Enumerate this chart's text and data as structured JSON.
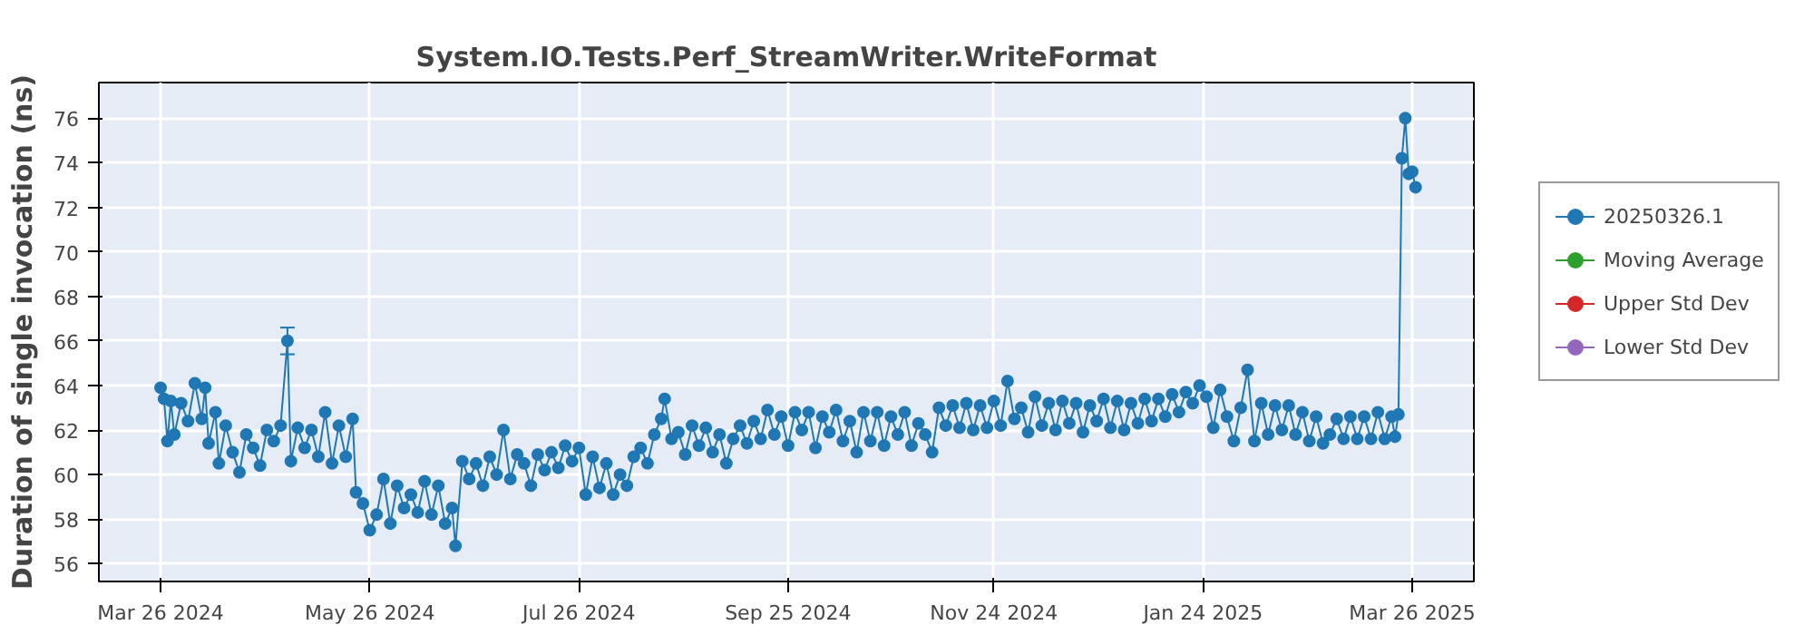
{
  "chart_data": {
    "type": "line",
    "title": "System.IO.Tests.Perf_StreamWriter.WriteFormat",
    "ylabel": "Duration of single invocation (ns)",
    "xlim": [
      "2024-03-08",
      "2025-04-13"
    ],
    "ylim": [
      55.2,
      77.6
    ],
    "xticks": [
      {
        "value": "2024-03-26",
        "label": "Mar 26 2024"
      },
      {
        "value": "2024-05-26",
        "label": "May 26 2024"
      },
      {
        "value": "2024-07-26",
        "label": "Jul 26 2024"
      },
      {
        "value": "2024-09-25",
        "label": "Sep 25 2024"
      },
      {
        "value": "2024-11-24",
        "label": "Nov 24 2024"
      },
      {
        "value": "2025-01-24",
        "label": "Jan 24 2025"
      },
      {
        "value": "2025-03-26",
        "label": "Mar 26 2025"
      }
    ],
    "yticks": [
      56,
      58,
      60,
      62,
      64,
      66,
      68,
      70,
      72,
      74,
      76
    ],
    "grid": true,
    "legend": "right",
    "marker": "circle",
    "line_style": "solid",
    "series": [
      {
        "name": "20250326.1",
        "color": "#1f77b4",
        "x": [
          "2024-03-26",
          "2024-03-27",
          "2024-03-28",
          "2024-03-29",
          "2024-03-30",
          "2024-04-01",
          "2024-04-03",
          "2024-04-05",
          "2024-04-07",
          "2024-04-08",
          "2024-04-09",
          "2024-04-11",
          "2024-04-12",
          "2024-04-14",
          "2024-04-16",
          "2024-04-18",
          "2024-04-20",
          "2024-04-22",
          "2024-04-24",
          "2024-04-26",
          "2024-04-28",
          "2024-04-30",
          "2024-05-02",
          "2024-05-03",
          "2024-05-05",
          "2024-05-07",
          "2024-05-09",
          "2024-05-11",
          "2024-05-13",
          "2024-05-15",
          "2024-05-17",
          "2024-05-19",
          "2024-05-21",
          "2024-05-22",
          "2024-05-24",
          "2024-05-26",
          "2024-05-28",
          "2024-05-30",
          "2024-06-01",
          "2024-06-03",
          "2024-06-05",
          "2024-06-07",
          "2024-06-09",
          "2024-06-11",
          "2024-06-13",
          "2024-06-15",
          "2024-06-17",
          "2024-06-19",
          "2024-06-20",
          "2024-06-22",
          "2024-06-24",
          "2024-06-26",
          "2024-06-28",
          "2024-06-30",
          "2024-07-02",
          "2024-07-04",
          "2024-07-06",
          "2024-07-08",
          "2024-07-10",
          "2024-07-12",
          "2024-07-14",
          "2024-07-16",
          "2024-07-18",
          "2024-07-20",
          "2024-07-22",
          "2024-07-24",
          "2024-07-26",
          "2024-07-28",
          "2024-07-30",
          "2024-08-01",
          "2024-08-03",
          "2024-08-05",
          "2024-08-07",
          "2024-08-09",
          "2024-08-11",
          "2024-08-13",
          "2024-08-15",
          "2024-08-17",
          "2024-08-19",
          "2024-08-20",
          "2024-08-22",
          "2024-08-24",
          "2024-08-26",
          "2024-08-28",
          "2024-08-30",
          "2024-09-01",
          "2024-09-03",
          "2024-09-05",
          "2024-09-07",
          "2024-09-09",
          "2024-09-11",
          "2024-09-13",
          "2024-09-15",
          "2024-09-17",
          "2024-09-19",
          "2024-09-21",
          "2024-09-23",
          "2024-09-25",
          "2024-09-27",
          "2024-09-29",
          "2024-10-01",
          "2024-10-03",
          "2024-10-05",
          "2024-10-07",
          "2024-10-09",
          "2024-10-11",
          "2024-10-13",
          "2024-10-15",
          "2024-10-17",
          "2024-10-19",
          "2024-10-21",
          "2024-10-23",
          "2024-10-25",
          "2024-10-27",
          "2024-10-29",
          "2024-10-31",
          "2024-11-02",
          "2024-11-04",
          "2024-11-06",
          "2024-11-08",
          "2024-11-10",
          "2024-11-12",
          "2024-11-14",
          "2024-11-16",
          "2024-11-18",
          "2024-11-20",
          "2024-11-22",
          "2024-11-24",
          "2024-11-26",
          "2024-11-28",
          "2024-11-30",
          "2024-12-02",
          "2024-12-04",
          "2024-12-06",
          "2024-12-08",
          "2024-12-10",
          "2024-12-12",
          "2024-12-14",
          "2024-12-16",
          "2024-12-18",
          "2024-12-20",
          "2024-12-22",
          "2024-12-24",
          "2024-12-26",
          "2024-12-28",
          "2024-12-30",
          "2025-01-01",
          "2025-01-03",
          "2025-01-05",
          "2025-01-07",
          "2025-01-09",
          "2025-01-11",
          "2025-01-13",
          "2025-01-15",
          "2025-01-17",
          "2025-01-19",
          "2025-01-21",
          "2025-01-23",
          "2025-01-25",
          "2025-01-27",
          "2025-01-29",
          "2025-01-31",
          "2025-02-02",
          "2025-02-04",
          "2025-02-06",
          "2025-02-08",
          "2025-02-10",
          "2025-02-12",
          "2025-02-14",
          "2025-02-16",
          "2025-02-18",
          "2025-02-20",
          "2025-02-22",
          "2025-02-24",
          "2025-02-26",
          "2025-02-28",
          "2025-03-02",
          "2025-03-04",
          "2025-03-06",
          "2025-03-08",
          "2025-03-10",
          "2025-03-12",
          "2025-03-14",
          "2025-03-16",
          "2025-03-18",
          "2025-03-20",
          "2025-03-21",
          "2025-03-22",
          "2025-03-23",
          "2025-03-24",
          "2025-03-25",
          "2025-03-26",
          "2025-03-27"
        ],
        "values": [
          63.9,
          63.4,
          61.5,
          63.3,
          61.8,
          63.2,
          62.4,
          64.1,
          62.5,
          63.9,
          61.4,
          62.8,
          60.5,
          62.2,
          61.0,
          60.1,
          61.8,
          61.2,
          60.4,
          62.0,
          61.5,
          62.2,
          66.0,
          60.6,
          62.1,
          61.2,
          62.0,
          60.8,
          62.8,
          60.5,
          62.2,
          60.8,
          62.5,
          59.2,
          58.7,
          57.5,
          58.2,
          59.8,
          57.8,
          59.5,
          58.5,
          59.1,
          58.3,
          59.7,
          58.2,
          59.5,
          57.8,
          58.5,
          56.8,
          60.6,
          59.8,
          60.5,
          59.5,
          60.8,
          60.0,
          62.0,
          59.8,
          60.9,
          60.5,
          59.5,
          60.9,
          60.2,
          61.0,
          60.3,
          61.3,
          60.6,
          61.2,
          59.1,
          60.8,
          59.4,
          60.5,
          59.1,
          60.0,
          59.5,
          60.8,
          61.2,
          60.5,
          61.8,
          62.5,
          63.4,
          61.6,
          61.9,
          60.9,
          62.2,
          61.3,
          62.1,
          61.0,
          61.8,
          60.5,
          61.6,
          62.2,
          61.4,
          62.4,
          61.6,
          62.9,
          61.8,
          62.6,
          61.3,
          62.8,
          62.0,
          62.8,
          61.2,
          62.6,
          61.9,
          62.9,
          61.5,
          62.4,
          61.0,
          62.8,
          61.5,
          62.8,
          61.3,
          62.6,
          61.8,
          62.8,
          61.3,
          62.3,
          61.8,
          61.0,
          63.0,
          62.2,
          63.1,
          62.1,
          63.2,
          62.0,
          63.1,
          62.1,
          63.3,
          62.2,
          64.2,
          62.5,
          63.0,
          61.9,
          63.5,
          62.2,
          63.2,
          62.0,
          63.3,
          62.3,
          63.2,
          61.9,
          63.1,
          62.4,
          63.4,
          62.1,
          63.3,
          62.0,
          63.2,
          62.3,
          63.4,
          62.4,
          63.4,
          62.6,
          63.6,
          62.8,
          63.7,
          63.2,
          64.0,
          63.5,
          62.1,
          63.8,
          62.6,
          61.5,
          63.0,
          64.7,
          61.5,
          63.2,
          61.8,
          63.1,
          62.0,
          63.1,
          61.8,
          62.8,
          61.5,
          62.6,
          61.4,
          61.8,
          62.5,
          61.6,
          62.6,
          61.6,
          62.6,
          61.6,
          62.8,
          61.6,
          62.6,
          61.7,
          62.7,
          74.2,
          76.0,
          73.5,
          73.6,
          72.9
        ],
        "errors": [
          null,
          null,
          null,
          null,
          null,
          null,
          null,
          null,
          null,
          null,
          null,
          null,
          null,
          null,
          null,
          null,
          null,
          null,
          null,
          null,
          null,
          null,
          [
            65.4,
            66.6
          ],
          null,
          null,
          null,
          null,
          null,
          null,
          null,
          null,
          null,
          null,
          null,
          null,
          null,
          null,
          null,
          null,
          null,
          null,
          null,
          null,
          null,
          null,
          null,
          null,
          null,
          null,
          null,
          null,
          null,
          null,
          null,
          null,
          null,
          null,
          null,
          null,
          null,
          null,
          null,
          null,
          null,
          null,
          null,
          null,
          null,
          null,
          null,
          null,
          null,
          null,
          null,
          null,
          null,
          null,
          null,
          null,
          null,
          null,
          null,
          null,
          null,
          null,
          null,
          null,
          null,
          null,
          null,
          null,
          null,
          null,
          null,
          null,
          null,
          null,
          null,
          null,
          null,
          null,
          null,
          null,
          null,
          null,
          null,
          null,
          null,
          null,
          null,
          null,
          null,
          null,
          null,
          null,
          null,
          null,
          null,
          null,
          null,
          null,
          null,
          null,
          null,
          null,
          null,
          null,
          null,
          null,
          null,
          null,
          null,
          null,
          null,
          null,
          null,
          null,
          null,
          null,
          null,
          null,
          null,
          null,
          null,
          null,
          null,
          null,
          null,
          null,
          null,
          null,
          null,
          null,
          null,
          null,
          null,
          null,
          null,
          null,
          null,
          null,
          null,
          null,
          null,
          null,
          null,
          null,
          null,
          null,
          null,
          null,
          null,
          null,
          null,
          null,
          null,
          null,
          null,
          null,
          null,
          null,
          null,
          null,
          null,
          null,
          null,
          null,
          null,
          null,
          null,
          null,
          null,
          null
        ]
      },
      {
        "name": "Moving Average",
        "color": "#2ca02c"
      },
      {
        "name": "Upper Std Dev",
        "color": "#d62728"
      },
      {
        "name": "Lower Std Dev",
        "color": "#9467bd"
      }
    ]
  }
}
